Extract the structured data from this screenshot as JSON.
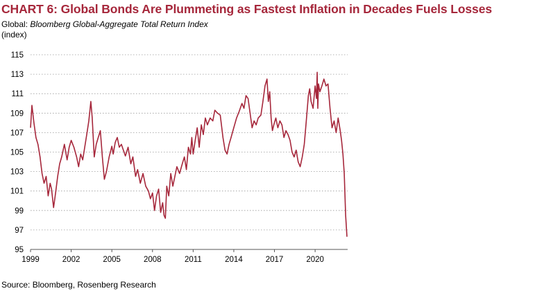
{
  "header": {
    "title": "CHART 6: Global Bonds Are Plummeting as Fastest Inflation in Decades Fuels Losses",
    "subtitle_prefix": "Global: ",
    "subtitle_series": "Bloomberg Global-Aggregate Total Return Index",
    "unit": "(index)"
  },
  "footer": {
    "source": "Source: Bloomberg, Rosenberg Research"
  },
  "colors": {
    "line": "#a6273b",
    "title": "#a6273b",
    "grid": "#9a9a9a",
    "axis": "#555555"
  },
  "chart_data": {
    "type": "line",
    "title": "CHART 6: Global Bonds Are Plummeting as Fastest Inflation in Decades Fuels Losses",
    "subtitle": "Global: Bloomberg Global-Aggregate Total Return Index",
    "ylabel": "(index)",
    "xlabel": "",
    "xlim": [
      1999.0,
      2022.4
    ],
    "ylim": [
      95,
      115
    ],
    "x_ticks": [
      1999,
      2002,
      2005,
      2008,
      2011,
      2014,
      2017,
      2020
    ],
    "y_ticks": [
      95,
      97,
      99,
      101,
      103,
      105,
      107,
      109,
      111,
      113,
      115
    ],
    "grid": "horizontal dotted",
    "legend": "none",
    "series": [
      {
        "x": [
          1999.0,
          1999.1,
          1999.25,
          1999.4,
          1999.55,
          1999.7,
          1999.85,
          2000.0,
          2000.15,
          2000.3,
          2000.45,
          2000.55,
          2000.7,
          2000.85,
          2001.0,
          2001.15,
          2001.3,
          2001.5,
          2001.7,
          2001.85,
          2002.0,
          2002.2,
          2002.4,
          2002.55,
          2002.7,
          2002.85,
          2003.0,
          2003.15,
          2003.3,
          2003.45,
          2003.55,
          2003.7,
          2003.85,
          2004.0,
          2004.15,
          2004.3,
          2004.45,
          2004.6,
          2004.8,
          2005.0,
          2005.1,
          2005.25,
          2005.4,
          2005.55,
          2005.7,
          2005.85,
          2006.0,
          2006.2,
          2006.4,
          2006.55,
          2006.75,
          2006.9,
          2007.1,
          2007.3,
          2007.5,
          2007.7,
          2007.85,
          2008.0,
          2008.15,
          2008.3,
          2008.45,
          2008.6,
          2008.75,
          2008.85,
          2008.95,
          2009.05,
          2009.2,
          2009.35,
          2009.5,
          2009.65,
          2009.8,
          2010.0,
          2010.2,
          2010.35,
          2010.5,
          2010.65,
          2010.8,
          2010.9,
          2011.0,
          2011.15,
          2011.3,
          2011.45,
          2011.6,
          2011.75,
          2011.9,
          2012.05,
          2012.25,
          2012.45,
          2012.6,
          2012.8,
          2013.0,
          2013.2,
          2013.35,
          2013.5,
          2013.65,
          2013.8,
          2014.0,
          2014.2,
          2014.4,
          2014.6,
          2014.75,
          2014.9,
          2015.05,
          2015.2,
          2015.35,
          2015.5,
          2015.65,
          2015.8,
          2016.0,
          2016.15,
          2016.3,
          2016.45,
          2016.55,
          2016.65,
          2016.75,
          2016.85,
          2016.95,
          2017.1,
          2017.25,
          2017.4,
          2017.55,
          2017.7,
          2017.85,
          2018.0,
          2018.15,
          2018.3,
          2018.45,
          2018.6,
          2018.75,
          2018.9,
          2019.05,
          2019.2,
          2019.35,
          2019.5,
          2019.6,
          2019.7,
          2019.85,
          2020.0,
          2020.1,
          2020.15,
          2020.2,
          2020.25,
          2020.35,
          2020.5,
          2020.65,
          2020.8,
          2020.95,
          2021.1,
          2021.25,
          2021.4,
          2021.55,
          2021.7,
          2021.85,
          2021.95,
          2022.05,
          2022.15,
          2022.25,
          2022.35
        ],
        "values": [
          107.5,
          109.8,
          108.0,
          106.5,
          105.8,
          104.5,
          102.8,
          101.8,
          102.5,
          100.5,
          101.8,
          101.2,
          99.3,
          100.8,
          102.5,
          103.8,
          104.5,
          105.8,
          104.2,
          105.5,
          106.2,
          105.5,
          104.5,
          103.5,
          104.8,
          104.2,
          105.5,
          106.8,
          108.2,
          110.2,
          108.5,
          104.5,
          105.8,
          106.5,
          107.2,
          104.5,
          102.2,
          103.0,
          104.5,
          105.6,
          104.8,
          106.0,
          106.5,
          105.5,
          105.8,
          105.2,
          104.6,
          105.5,
          103.8,
          104.5,
          102.5,
          103.2,
          101.8,
          102.8,
          101.5,
          101.0,
          100.2,
          100.8,
          99.0,
          100.5,
          101.2,
          98.8,
          99.8,
          98.5,
          98.2,
          101.5,
          100.5,
          102.8,
          101.5,
          102.5,
          103.5,
          102.8,
          103.8,
          104.5,
          103.2,
          105.5,
          104.8,
          106.5,
          104.8,
          106.2,
          107.5,
          105.5,
          107.8,
          106.8,
          108.5,
          107.8,
          108.5,
          108.2,
          109.3,
          109.0,
          108.8,
          106.5,
          105.2,
          104.8,
          105.8,
          106.5,
          107.5,
          108.5,
          109.2,
          110.0,
          109.5,
          110.8,
          110.5,
          109.0,
          107.5,
          108.2,
          107.8,
          108.5,
          108.8,
          110.2,
          111.8,
          112.5,
          110.2,
          111.2,
          108.5,
          107.2,
          107.8,
          108.5,
          107.5,
          108.2,
          107.8,
          106.5,
          107.2,
          106.8,
          106.2,
          105.0,
          104.5,
          105.2,
          104.0,
          103.5,
          104.5,
          105.8,
          108.2,
          110.8,
          111.5,
          110.2,
          109.5,
          111.8,
          110.5,
          113.2,
          109.5,
          112.0,
          111.2,
          111.8,
          112.5,
          111.8,
          112.0,
          109.5,
          107.5,
          108.2,
          107.0,
          108.5,
          107.2,
          106.2,
          104.8,
          102.8,
          98.5,
          96.3
        ]
      }
    ]
  }
}
